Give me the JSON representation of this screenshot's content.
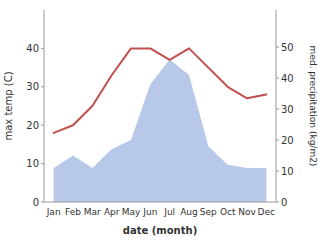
{
  "chart_data": {
    "type": "line",
    "xlabel": "date (month)",
    "ylabel": "max temp (C)",
    "y2label": "med. precipitation (kg/m2)",
    "categories": [
      "Jan",
      "Feb",
      "Mar",
      "Apr",
      "May",
      "Jun",
      "Jul",
      "Aug",
      "Sep",
      "Oct",
      "Nov",
      "Dec"
    ],
    "series": [
      {
        "type": "area",
        "axis": "y2",
        "color": "#b8c8e8",
        "values": [
          11,
          15,
          11,
          17,
          20,
          38,
          46,
          41,
          18,
          12,
          11,
          11
        ]
      },
      {
        "type": "line",
        "color": "#c0504d",
        "values": [
          18,
          20,
          25,
          33,
          40,
          40,
          37,
          40,
          35,
          30,
          27,
          28
        ]
      }
    ],
    "ylim": [
      0,
      50
    ],
    "yticks": [
      0,
      10,
      20,
      30,
      40
    ],
    "y2lim": [
      0,
      62
    ],
    "y2ticks": [
      0,
      10,
      20,
      30,
      40,
      50
    ],
    "grid": false
  }
}
